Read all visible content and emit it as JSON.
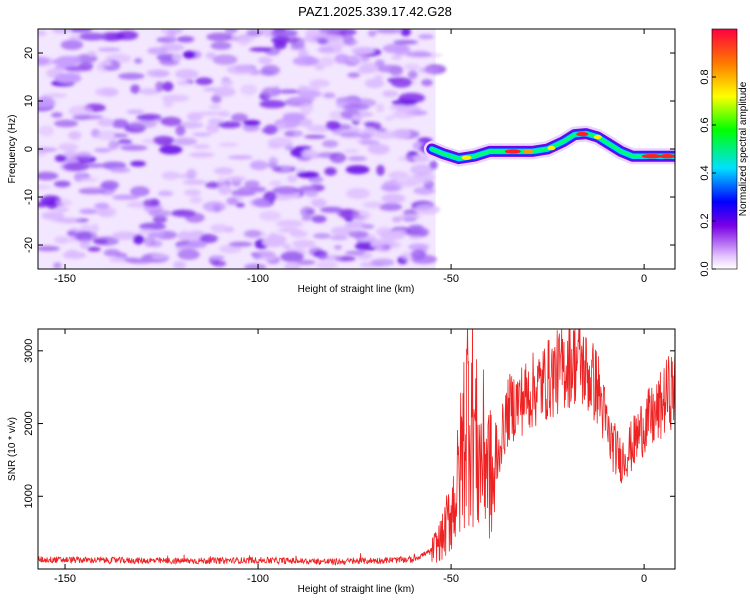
{
  "title": "PAZ1.2025.339.17.42.G28",
  "chart_data": [
    {
      "type": "heatmap",
      "xlabel": "Height of straight line (km)",
      "ylabel": "Frequency (Hz)",
      "xlim": [
        -157,
        8
      ],
      "ylim": [
        -25,
        25
      ],
      "xticks": [
        -150,
        -100,
        -50,
        0
      ],
      "yticks": [
        -20,
        -10,
        0,
        10,
        20
      ],
      "xtick_labels": [
        "-150",
        "-100",
        "-50",
        "0"
      ],
      "ytick_labels": [
        "-20",
        "-10",
        "0",
        "10",
        "20"
      ],
      "noise_region_x": [
        -157,
        -54
      ],
      "ridge": {
        "x": [
          -55,
          -52,
          -48,
          -44,
          -40,
          -37,
          -33,
          -29,
          -25,
          -21,
          -18,
          -15,
          -12,
          -9,
          -6,
          -3,
          0,
          4,
          8
        ],
        "y": [
          0,
          -1,
          -2,
          -1.5,
          -0.5,
          -0.5,
          -0.5,
          -0.5,
          0,
          1.5,
          3,
          3.2,
          2.5,
          1,
          -0.5,
          -1.5,
          -1.5,
          -1.5,
          -1.5
        ]
      },
      "colorbar": {
        "label": "Normalized spectral amplitude",
        "range": [
          0,
          1
        ],
        "ticks": [
          0.0,
          0.2,
          0.4,
          0.6,
          0.8
        ],
        "tick_labels": [
          "0.0",
          "0.2",
          "0.4",
          "0.6",
          "0.8"
        ]
      }
    },
    {
      "type": "line",
      "xlabel": "Height of straight line (km)",
      "ylabel": "SNR (10 * v/v)",
      "xlim": [
        -157,
        8
      ],
      "ylim": [
        0,
        3300
      ],
      "xticks": [
        -150,
        -100,
        -50,
        0
      ],
      "yticks": [
        1000,
        2000,
        3000
      ],
      "xtick_labels": [
        "-150",
        "-100",
        "-50",
        "0"
      ],
      "ytick_labels": [
        "1000",
        "2000",
        "3000"
      ],
      "color": "#ee2222",
      "envelope": {
        "x": [
          -157,
          -140,
          -120,
          -100,
          -80,
          -60,
          -55,
          -52,
          -50,
          -48,
          -46,
          -45,
          -43,
          -41,
          -39,
          -37,
          -35,
          -30,
          -25,
          -20,
          -17,
          -15,
          -12,
          -9,
          -6,
          -3,
          0,
          3,
          6,
          8
        ],
        "y": [
          130,
          120,
          110,
          120,
          100,
          130,
          250,
          450,
          800,
          1200,
          2200,
          2400,
          1500,
          1600,
          1100,
          1800,
          2200,
          2400,
          2600,
          2800,
          2900,
          2700,
          2500,
          1800,
          1500,
          1700,
          2000,
          2100,
          2400,
          2500
        ]
      }
    }
  ]
}
